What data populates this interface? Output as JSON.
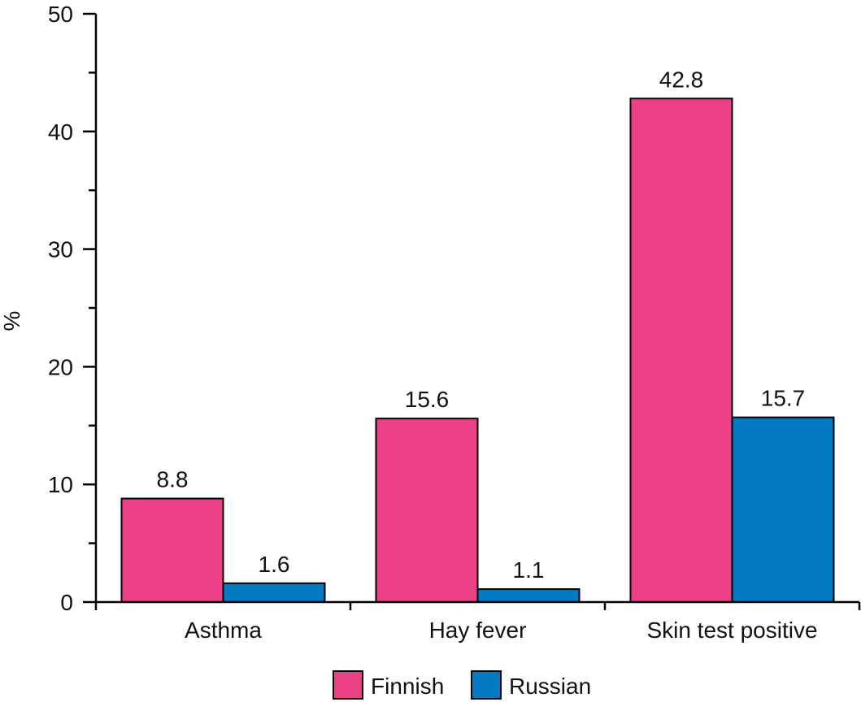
{
  "chart_data": {
    "type": "bar",
    "ylabel": "%",
    "xlabel": "",
    "ylim": [
      0,
      50
    ],
    "yticks": [
      0,
      10,
      20,
      30,
      40,
      50
    ],
    "categories": [
      "Asthma",
      "Hay fever",
      "Skin test positive"
    ],
    "series": [
      {
        "name": "Finnish",
        "color": "#EE4086",
        "values": [
          8.8,
          15.6,
          42.8
        ],
        "labels": [
          "8.8",
          "15.6",
          "42.8"
        ]
      },
      {
        "name": "Russian",
        "color": "#0579C2",
        "values": [
          1.6,
          1.1,
          15.7
        ],
        "labels": [
          "1.6",
          "1.1",
          "15.7"
        ]
      }
    ],
    "legend_position": "bottom-center"
  }
}
